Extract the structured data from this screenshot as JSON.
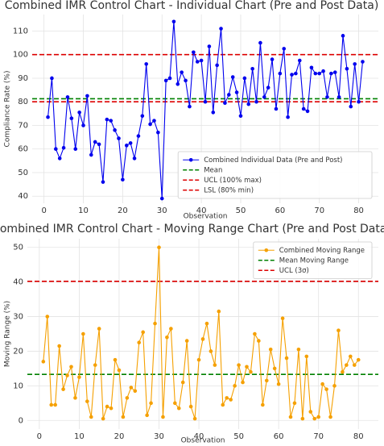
{
  "chart_data": [
    {
      "type": "line",
      "title": "Combined IMR Control Chart - Individual Chart (Pre and Post Data)",
      "xlabel": "Observation",
      "ylabel": "Compliance Rate (%)",
      "x": [
        1,
        2,
        3,
        4,
        5,
        6,
        7,
        8,
        9,
        10,
        11,
        12,
        13,
        14,
        15,
        16,
        17,
        18,
        19,
        20,
        21,
        22,
        23,
        24,
        25,
        26,
        27,
        28,
        29,
        30,
        31,
        32,
        33,
        34,
        35,
        36,
        37,
        38,
        39,
        40,
        41,
        42,
        43,
        44,
        45,
        46,
        47,
        48,
        49,
        50,
        51,
        52,
        53,
        54,
        55,
        56,
        57,
        58,
        59,
        60,
        61,
        62,
        63,
        64,
        65,
        66,
        67,
        68,
        69,
        70,
        71,
        72,
        73,
        74,
        75,
        76,
        77,
        78,
        79,
        80,
        81
      ],
      "series": [
        {
          "name": "Combined Individual Data (Pre and Post)",
          "color": "#0000ee",
          "values": [
            73.5,
            90,
            60,
            56,
            60.5,
            82,
            73,
            60,
            75.5,
            70,
            82.5,
            57.5,
            63,
            62,
            46,
            72.5,
            72,
            68,
            64.5,
            47,
            61.5,
            62.5,
            56,
            65.5,
            74,
            96,
            70.5,
            72,
            67,
            39,
            89,
            90,
            114,
            87.5,
            92.5,
            89,
            78,
            101,
            97,
            97.5,
            80,
            103.5,
            75.5,
            95.5,
            111,
            79.5,
            83,
            90.5,
            84,
            74,
            90,
            79,
            94,
            80,
            105,
            82,
            86,
            98,
            77,
            92,
            102.5,
            73.5,
            91.5,
            92,
            97.5,
            77,
            76,
            94.5,
            92,
            92,
            93,
            82,
            92,
            92.5,
            82,
            108,
            94,
            78,
            96,
            80,
            97
          ]
        }
      ],
      "reference_lines": [
        {
          "name": "Mean",
          "value": 81.3,
          "color": "#008000"
        },
        {
          "name": "UCL (100% max)",
          "value": 100,
          "color": "#dd0000"
        },
        {
          "name": "LSL (80% min)",
          "value": 80,
          "color": "#dd0000"
        }
      ],
      "xlim": [
        -3,
        85
      ],
      "ylim": [
        37,
        117
      ],
      "xticks": [
        0,
        10,
        20,
        30,
        40,
        50,
        60,
        70,
        80
      ],
      "yticks": [
        40,
        50,
        60,
        70,
        80,
        90,
        100,
        110
      ],
      "grid": true,
      "legend": "lower right"
    },
    {
      "type": "line",
      "title": "Combined IMR Control Chart - Moving Range Chart (Pre and Post Data)",
      "xlabel": "Observation",
      "ylabel": "Moving Range (%)",
      "x": [
        1,
        2,
        3,
        4,
        5,
        6,
        7,
        8,
        9,
        10,
        11,
        12,
        13,
        14,
        15,
        16,
        17,
        18,
        19,
        20,
        21,
        22,
        23,
        24,
        25,
        26,
        27,
        28,
        29,
        30,
        31,
        32,
        33,
        34,
        35,
        36,
        37,
        38,
        39,
        40,
        41,
        42,
        43,
        44,
        45,
        46,
        47,
        48,
        49,
        50,
        51,
        52,
        53,
        54,
        55,
        56,
        57,
        58,
        59,
        60,
        61,
        62,
        63,
        64,
        65,
        66,
        67,
        68,
        69,
        70,
        71,
        72,
        73,
        74,
        75,
        76,
        77,
        78,
        79,
        80
      ],
      "series": [
        {
          "name": "Combined Moving Range",
          "color": "#f5a000",
          "values": [
            17,
            30,
            4.5,
            4.5,
            21.5,
            9,
            13,
            15.5,
            6.5,
            12.5,
            25,
            5.5,
            1,
            16,
            26.5,
            0.5,
            4,
            3.5,
            17.5,
            14.5,
            1,
            6.5,
            9.5,
            8.5,
            22.5,
            25.5,
            1.5,
            5,
            28,
            50,
            1,
            24,
            26.5,
            5,
            3.5,
            11,
            23,
            4,
            0.5,
            17.5,
            23.5,
            28,
            20,
            16,
            31.5,
            4.5,
            6.5,
            6,
            10,
            16,
            11,
            15.5,
            14,
            25,
            23,
            4.5,
            11.5,
            20.5,
            15,
            10.5,
            29.5,
            18,
            1,
            5,
            20.5,
            0.5,
            18.5,
            2.5,
            0.5,
            1,
            10.5,
            9,
            1,
            10,
            26,
            14,
            16,
            18.5,
            16,
            17.5
          ]
        }
      ],
      "reference_lines": [
        {
          "name": "Mean Moving Range",
          "value": 13.3,
          "color": "#008000"
        },
        {
          "name": "UCL (3σ)",
          "value": 40.2,
          "color": "#dd0000"
        }
      ],
      "xlim": [
        -3,
        85
      ],
      "ylim": [
        -2.5,
        52.5
      ],
      "xticks": [
        0,
        10,
        20,
        30,
        40,
        50,
        60,
        70,
        80
      ],
      "yticks": [
        0,
        10,
        20,
        30,
        40,
        50
      ],
      "grid": true,
      "legend": "upper right"
    }
  ]
}
